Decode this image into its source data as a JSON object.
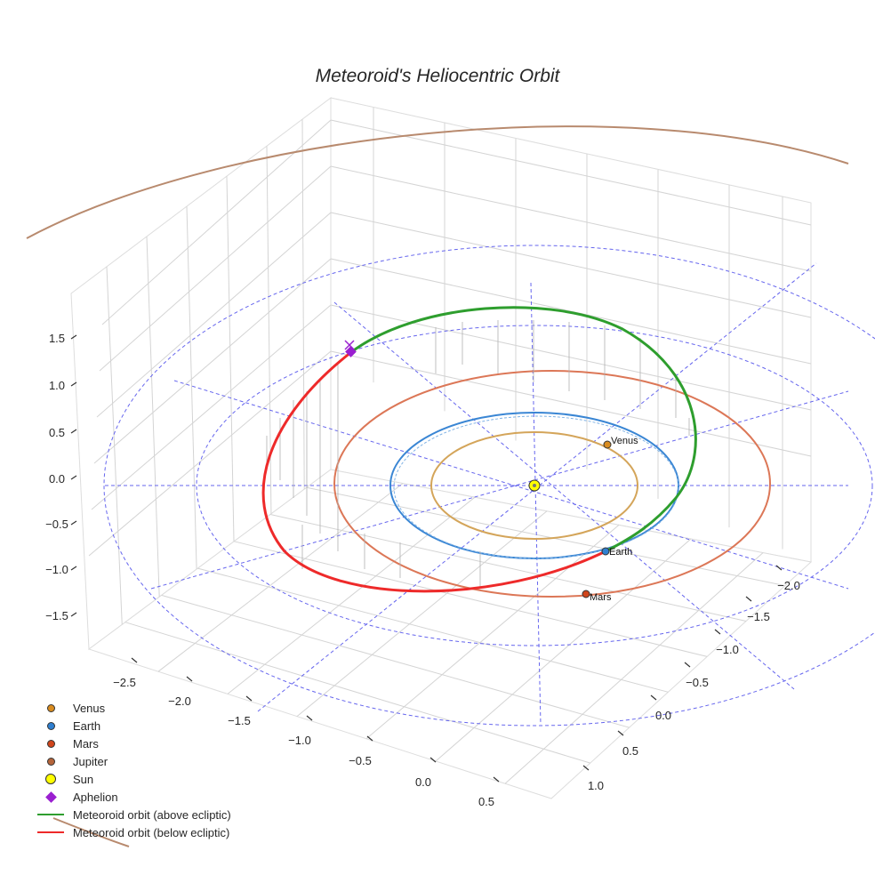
{
  "chart_data": {
    "type": "3d-orbit",
    "title": "Meteoroid's Heliocentric Orbit",
    "x_ticks": [
      -2.5,
      -2.0,
      -1.5,
      -1.0,
      -0.5,
      0.0,
      0.5
    ],
    "x_tick_labels": [
      "−2.5",
      "−2.0",
      "−1.5",
      "−1.0",
      "−0.5",
      "0.0",
      "0.5"
    ],
    "y_ticks": [
      -2.0,
      -1.5,
      -1.0,
      -0.5,
      0.0,
      0.5,
      1.0
    ],
    "y_tick_labels": [
      "−2.0",
      "−1.5",
      "−1.0",
      "−0.5",
      "0.0",
      "0.5",
      "1.0"
    ],
    "z_ticks": [
      1.5,
      1.0,
      0.5,
      0.0,
      -0.5,
      -1.0,
      -1.5
    ],
    "z_tick_labels": [
      "1.5",
      "1.0",
      "0.5",
      "0.0",
      "−0.5",
      "−1.0",
      "−1.5"
    ],
    "planets": [
      {
        "name": "Venus",
        "color": "#d98c1f",
        "orbit_color": "#d4a55a",
        "semi_major_au": 0.72
      },
      {
        "name": "Earth",
        "color": "#2f7fd0",
        "orbit_color": "#3a86d4",
        "semi_major_au": 1.0
      },
      {
        "name": "Mars",
        "color": "#d0451b",
        "orbit_color": "#dc7757",
        "semi_major_au": 1.52
      },
      {
        "name": "Jupiter",
        "color": "#b5643a",
        "orbit_color": "#b88a6e",
        "semi_major_au": 5.2
      }
    ],
    "sun": {
      "name": "Sun",
      "color": "#ffff00"
    },
    "aphelion": {
      "name": "Aphelion",
      "color": "#9a1fd0"
    },
    "meteoroid": {
      "above_label": "Meteoroid orbit (above ecliptic)",
      "above_color": "#2e9e2e",
      "below_label": "Meteoroid orbit (below ecliptic)",
      "below_color": "#ee2a2a"
    },
    "legend": [
      {
        "label": "Venus",
        "kind": "dot",
        "color": "#d98c1f"
      },
      {
        "label": "Earth",
        "kind": "dot",
        "color": "#2f7fd0"
      },
      {
        "label": "Mars",
        "kind": "dot",
        "color": "#d0451b"
      },
      {
        "label": "Jupiter",
        "kind": "dot",
        "color": "#b5643a"
      },
      {
        "label": "Sun",
        "kind": "sun",
        "color": "#ffff00"
      },
      {
        "label": "Aphelion",
        "kind": "diamond",
        "color": "#9a1fd0"
      },
      {
        "label": "Meteoroid orbit (above ecliptic)",
        "kind": "line",
        "color": "#2e9e2e"
      },
      {
        "label": "Meteoroid orbit (below ecliptic)",
        "kind": "line",
        "color": "#ee2a2a"
      }
    ]
  }
}
